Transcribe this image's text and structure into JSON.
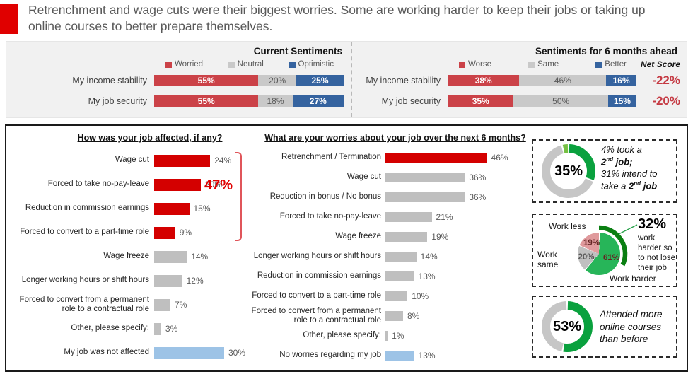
{
  "header": {
    "text": "Retrenchment and wage cuts were their biggest worries. Some are working harder to keep their jobs or taking up online courses to better prepare themselves.",
    "accent_color": "#e00000"
  },
  "chart_data": [
    {
      "id": "current_sentiments",
      "type": "bar",
      "variant": "stacked-horizontal",
      "title": "Current Sentiments",
      "legend": [
        {
          "label": "Worried",
          "color": "#cb4248",
          "text_color": "#ffffff",
          "bold": true
        },
        {
          "label": "Neutral",
          "color": "#c9c9c9",
          "text_color": "#595959",
          "bold": false
        },
        {
          "label": "Optimistic",
          "color": "#35639f",
          "text_color": "#ffffff",
          "bold": true
        }
      ],
      "categories": [
        "My income stability",
        "My job security"
      ],
      "series": [
        {
          "name": "Worried",
          "values": [
            55,
            55
          ]
        },
        {
          "name": "Neutral",
          "values": [
            20,
            18
          ]
        },
        {
          "name": "Optimistic",
          "values": [
            25,
            27
          ]
        }
      ],
      "unit": "%",
      "xlim": [
        0,
        100
      ]
    },
    {
      "id": "sentiments_6_months",
      "type": "bar",
      "variant": "stacked-horizontal",
      "title": "Sentiments for 6 months ahead",
      "legend": [
        {
          "label": "Worse",
          "color": "#cb4248",
          "text_color": "#ffffff",
          "bold": true
        },
        {
          "label": "Same",
          "color": "#c9c9c9",
          "text_color": "#595959",
          "bold": false
        },
        {
          "label": "Better",
          "color": "#35639f",
          "text_color": "#ffffff",
          "bold": true
        }
      ],
      "categories": [
        "My income stability",
        "My job security"
      ],
      "series": [
        {
          "name": "Worse",
          "values": [
            38,
            35
          ]
        },
        {
          "name": "Same",
          "values": [
            46,
            50
          ]
        },
        {
          "name": "Better",
          "values": [
            16,
            15
          ]
        }
      ],
      "net_score": {
        "label": "Net Score",
        "values": [
          "-22%",
          "-20%"
        ],
        "color": "#c53a43"
      },
      "unit": "%",
      "xlim": [
        0,
        100
      ]
    },
    {
      "id": "job_affected",
      "type": "bar",
      "title": "How was your job affected, if any?",
      "categories": [
        "Wage cut",
        "Forced to take no-pay-leave",
        "Reduction in commission earnings",
        "Forced to convert to a part-time role",
        "Wage freeze",
        "Longer working hours or shift hours",
        "Forced to convert from a permanent role to a contractual role",
        "Other, please specify:",
        "My job was not affected"
      ],
      "values": [
        24,
        20,
        15,
        9,
        14,
        12,
        7,
        3,
        30
      ],
      "colors": [
        "#d40000",
        "#d40000",
        "#d40000",
        "#d40000",
        "#bfbfbf",
        "#bfbfbf",
        "#bfbfbf",
        "#bfbfbf",
        "#9dc3e6"
      ],
      "unit": "%",
      "bracket": {
        "label": "47%",
        "color": "#e00000",
        "rows": [
          0,
          3
        ]
      }
    },
    {
      "id": "worries_next_6_months",
      "type": "bar",
      "title": "What are your worries about your job over the next 6 months?",
      "categories": [
        "Retrenchment / Termination",
        "Wage cut",
        "Reduction in bonus / No bonus",
        "Forced to take no-pay-leave",
        "Wage freeze",
        "Longer working hours or shift hours",
        "Reduction in commission earnings",
        "Forced to convert to a part-time role",
        "Forced to convert from a permanent role to a contractual role",
        "Other, please specify:",
        "No worries regarding my job"
      ],
      "values": [
        46,
        36,
        36,
        21,
        19,
        14,
        13,
        10,
        8,
        1,
        13
      ],
      "colors": [
        "#d40000",
        "#bfbfbf",
        "#bfbfbf",
        "#bfbfbf",
        "#bfbfbf",
        "#bfbfbf",
        "#bfbfbf",
        "#bfbfbf",
        "#bfbfbf",
        "#bfbfbf",
        "#9dc3e6"
      ],
      "unit": "%"
    },
    {
      "id": "second_job_donut",
      "type": "pie",
      "variant": "donut",
      "center_label": "35%",
      "segments": [
        {
          "value": 31,
          "color": "#0aa13e"
        },
        {
          "value": 65,
          "color": "#c6c6c6"
        },
        {
          "value": 4,
          "color": "#76c043"
        }
      ],
      "caption_runs": [
        {
          "t": "4% took a",
          "br": true
        },
        {
          "t": "2",
          "b": true
        },
        {
          "t": "nd",
          "b": true,
          "sup": true
        },
        {
          "t": " job;",
          "b": true,
          "br": true
        },
        {
          "t": "31% intend to",
          "br": true
        },
        {
          "t": "take a "
        },
        {
          "t": "2",
          "b": true
        },
        {
          "t": "nd",
          "b": true,
          "sup": true
        },
        {
          "t": " job",
          "b": true
        }
      ]
    },
    {
      "id": "work_harder_pie",
      "type": "pie",
      "slices": [
        {
          "label": "Work harder",
          "value": 61,
          "color": "#27b559",
          "value_label_color": "#632423"
        },
        {
          "label": "Work same",
          "value": 20,
          "color": "#c0c0c0",
          "value_label_color": "#595959"
        },
        {
          "label": "Work less",
          "value": 19,
          "color": "#e09a9d",
          "value_label_color": "#632423"
        }
      ],
      "highlight_arc": {
        "value": 32,
        "color": "#0a7f12"
      },
      "callout": {
        "headline": "32%",
        "text": "work harder so to not lose their job"
      }
    },
    {
      "id": "online_courses_donut",
      "type": "pie",
      "variant": "donut",
      "center_label": "53%",
      "segments": [
        {
          "value": 53,
          "color": "#0aa13e"
        },
        {
          "value": 47,
          "color": "#c6c6c6"
        }
      ],
      "caption_runs": [
        {
          "t": "Attended more",
          "br": true
        },
        {
          "t": "online courses",
          "br": true
        },
        {
          "t": "than before"
        }
      ]
    }
  ]
}
